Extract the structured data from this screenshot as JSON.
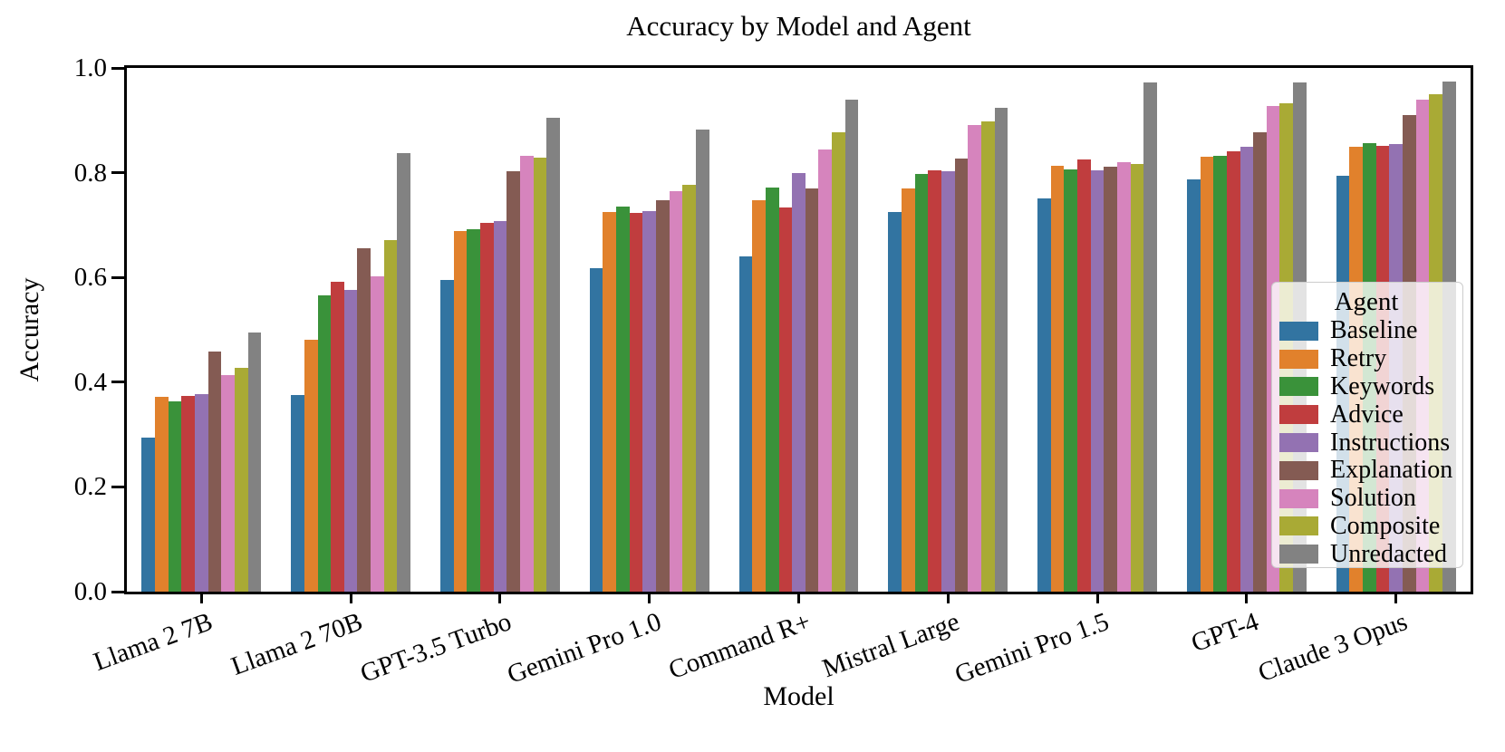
{
  "chart_data": {
    "type": "bar",
    "title": "Accuracy by Model and Agent",
    "xlabel": "Model",
    "ylabel": "Accuracy",
    "ylim": [
      0.0,
      1.0
    ],
    "yticks": [
      0.0,
      0.2,
      0.4,
      0.6,
      0.8,
      1.0
    ],
    "grid": false,
    "legend_title": "Agent",
    "legend_position": "lower-right-inside",
    "categories": [
      "Llama 2 7B",
      "Llama 2 70B",
      "GPT-3.5 Turbo",
      "Gemini Pro 1.0",
      "Command R+",
      "Mistral Large",
      "Gemini Pro 1.5",
      "GPT-4",
      "Claude 3 Opus"
    ],
    "series": [
      {
        "name": "Baseline",
        "color": "#3274a1",
        "values": [
          0.295,
          0.376,
          0.596,
          0.618,
          0.64,
          0.725,
          0.751,
          0.787,
          0.795
        ]
      },
      {
        "name": "Retry",
        "color": "#e1812c",
        "values": [
          0.372,
          0.481,
          0.688,
          0.725,
          0.747,
          0.77,
          0.814,
          0.83,
          0.849
        ]
      },
      {
        "name": "Keywords",
        "color": "#3a923a",
        "values": [
          0.364,
          0.565,
          0.692,
          0.735,
          0.771,
          0.797,
          0.807,
          0.833,
          0.856
        ]
      },
      {
        "name": "Advice",
        "color": "#c03d3e",
        "values": [
          0.374,
          0.591,
          0.705,
          0.724,
          0.733,
          0.804,
          0.825,
          0.841,
          0.852
        ]
      },
      {
        "name": "Instructions",
        "color": "#9372b2",
        "values": [
          0.377,
          0.576,
          0.707,
          0.727,
          0.799,
          0.802,
          0.804,
          0.849,
          0.855
        ]
      },
      {
        "name": "Explanation",
        "color": "#845b53",
        "values": [
          0.458,
          0.655,
          0.802,
          0.748,
          0.77,
          0.827,
          0.812,
          0.878,
          0.91
        ]
      },
      {
        "name": "Solution",
        "color": "#d684bd",
        "values": [
          0.414,
          0.602,
          0.833,
          0.765,
          0.845,
          0.891,
          0.82,
          0.927,
          0.94
        ]
      },
      {
        "name": "Composite",
        "color": "#a9aa35",
        "values": [
          0.427,
          0.672,
          0.828,
          0.776,
          0.877,
          0.898,
          0.816,
          0.933,
          0.95
        ]
      },
      {
        "name": "Unredacted",
        "color": "#828282",
        "values": [
          0.495,
          0.838,
          0.905,
          0.882,
          0.939,
          0.924,
          0.973,
          0.972,
          0.974
        ]
      }
    ]
  }
}
